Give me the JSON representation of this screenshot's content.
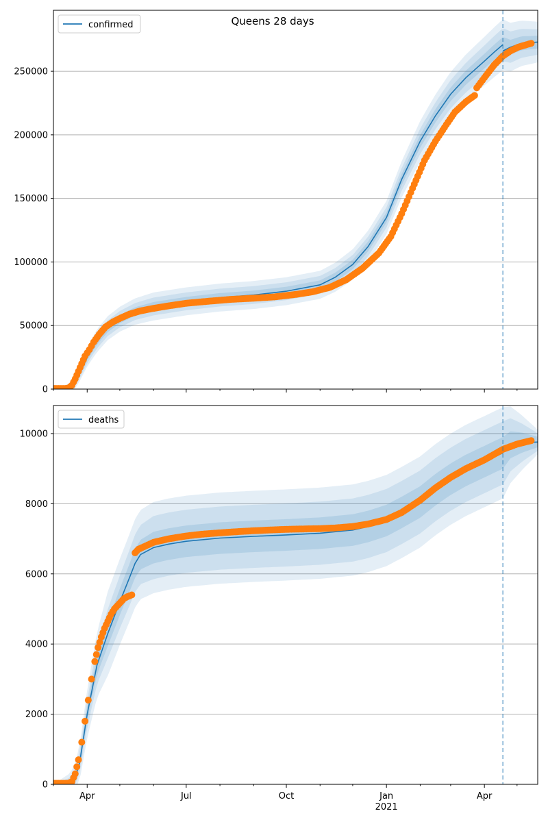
{
  "colors": {
    "model_line": "#1f77b4",
    "band": "#1f77b4",
    "observed_points": "#ff7f0e",
    "grid": "#b0b0b0",
    "forecast_marker": "#1f77b4"
  },
  "chart_data": [
    {
      "type": "line",
      "title": "Queens 28 days",
      "legend": {
        "label": "confirmed",
        "placement": "top-left"
      },
      "ylim": [
        0,
        298000
      ],
      "xlim": [
        "2020-03-01",
        "2021-05-20"
      ],
      "yticks": [
        {
          "value": 0,
          "label": "0"
        },
        {
          "value": 50000,
          "label": "50000"
        },
        {
          "value": 100000,
          "label": "100000"
        },
        {
          "value": 150000,
          "label": "150000"
        },
        {
          "value": 200000,
          "label": "200000"
        },
        {
          "value": 250000,
          "label": "250000"
        }
      ],
      "grid": "horizontal",
      "forecast_date": "2021-04-18",
      "fit_end_date": "2021-04-18",
      "model": {
        "name": "confirmed",
        "x": [
          "2020-03-01",
          "2020-03-10",
          "2020-03-15",
          "2020-03-20",
          "2020-03-25",
          "2020-04-01",
          "2020-04-10",
          "2020-04-20",
          "2020-05-01",
          "2020-05-15",
          "2020-06-01",
          "2020-07-01",
          "2020-08-01",
          "2020-09-01",
          "2020-10-01",
          "2020-11-01",
          "2020-11-15",
          "2020-12-01",
          "2020-12-15",
          "2021-01-01",
          "2021-01-15",
          "2021-02-01",
          "2021-02-15",
          "2021-03-01",
          "2021-03-15",
          "2021-04-01",
          "2021-04-10",
          "2021-04-18"
        ],
        "y": [
          0,
          0,
          500,
          4000,
          12000,
          25000,
          38000,
          48000,
          55000,
          61000,
          65000,
          69000,
          72000,
          74000,
          77000,
          82000,
          88000,
          98000,
          112000,
          135000,
          165000,
          195000,
          215000,
          232000,
          245000,
          258000,
          265000,
          271000
        ]
      },
      "model_tail": {
        "x": [
          "2021-04-18",
          "2021-04-25",
          "2021-05-05",
          "2021-05-20"
        ],
        "y": [
          266000,
          269000,
          272000,
          273000
        ]
      },
      "band_widths": [
        {
          "x": "2020-03-01",
          "inner": 0,
          "middle": 0,
          "outer": 0
        },
        {
          "x": "2020-03-20",
          "inner": 1500,
          "middle": 3000,
          "outer": 5000
        },
        {
          "x": "2020-04-10",
          "inner": 3000,
          "middle": 6000,
          "outer": 9000
        },
        {
          "x": "2020-06-01",
          "inner": 3500,
          "middle": 7000,
          "outer": 11000
        },
        {
          "x": "2020-11-01",
          "inner": 3500,
          "middle": 7000,
          "outer": 11000
        },
        {
          "x": "2021-01-01",
          "inner": 4000,
          "middle": 8000,
          "outer": 13000
        },
        {
          "x": "2021-02-01",
          "inner": 5000,
          "middle": 10000,
          "outer": 16000
        },
        {
          "x": "2021-04-18",
          "inner": 6000,
          "middle": 13000,
          "outer": 20000
        },
        {
          "x": "2021-05-20",
          "inner": 5000,
          "middle": 10000,
          "outer": 16000
        }
      ],
      "observed": {
        "x": [
          "2020-03-01",
          "2020-03-12",
          "2020-03-15",
          "2020-03-18",
          "2020-03-21",
          "2020-03-24",
          "2020-03-27",
          "2020-03-30",
          "2020-04-03",
          "2020-04-07",
          "2020-04-12",
          "2020-04-18",
          "2020-04-25",
          "2020-05-02",
          "2020-05-10",
          "2020-05-20",
          "2020-06-01",
          "2020-06-15",
          "2020-07-01",
          "2020-07-20",
          "2020-08-10",
          "2020-09-01",
          "2020-09-20",
          "2020-10-10",
          "2020-10-25",
          "2020-11-10",
          "2020-11-25",
          "2020-12-10",
          "2020-12-25",
          "2021-01-05",
          "2021-01-15",
          "2021-01-25",
          "2021-02-05",
          "2021-02-15",
          "2021-02-25",
          "2021-03-05",
          "2021-03-15",
          "2021-03-23",
          "2021-03-25",
          "2021-04-01",
          "2021-04-10",
          "2021-04-18",
          "2021-04-25",
          "2021-05-02",
          "2021-05-10",
          "2021-05-14"
        ],
        "y": [
          500,
          500,
          900,
          3000,
          8000,
          14000,
          20000,
          26000,
          31000,
          37000,
          43000,
          49000,
          53000,
          56000,
          59000,
          61500,
          63500,
          65500,
          67500,
          69000,
          70500,
          71500,
          72500,
          74500,
          76500,
          80000,
          86000,
          95000,
          107000,
          120000,
          138000,
          158000,
          180000,
          195000,
          208000,
          218000,
          226000,
          231000,
          237000,
          245000,
          255000,
          262000,
          266000,
          269000,
          271000,
          272000
        ]
      }
    },
    {
      "type": "line",
      "legend": {
        "label": "deaths",
        "placement": "top-left"
      },
      "ylim": [
        0,
        10800
      ],
      "xlim": [
        "2020-03-01",
        "2021-05-20"
      ],
      "yticks": [
        {
          "value": 0,
          "label": "0"
        },
        {
          "value": 2000,
          "label": "2000"
        },
        {
          "value": 4000,
          "label": "4000"
        },
        {
          "value": 6000,
          "label": "6000"
        },
        {
          "value": 8000,
          "label": "8000"
        },
        {
          "value": 10000,
          "label": "10000"
        }
      ],
      "xticks": [
        {
          "date": "2020-04-01",
          "label": "Apr"
        },
        {
          "date": "2020-07-01",
          "label": "Jul"
        },
        {
          "date": "2020-10-01",
          "label": "Oct"
        },
        {
          "date": "2021-01-01",
          "label": "Jan",
          "sublabel": "2021"
        },
        {
          "date": "2021-04-01",
          "label": "Apr"
        }
      ],
      "minor_ticks": [
        "2020-03-01",
        "2020-05-01",
        "2020-06-01",
        "2020-08-01",
        "2020-09-01",
        "2020-11-01",
        "2020-12-01",
        "2021-02-01",
        "2021-03-01",
        "2021-05-01"
      ],
      "grid": "horizontal",
      "forecast_date": "2021-04-18",
      "model": {
        "name": "deaths",
        "x": [
          "2020-03-01",
          "2020-03-15",
          "2020-03-20",
          "2020-03-25",
          "2020-04-01",
          "2020-04-10",
          "2020-04-20",
          "2020-05-01",
          "2020-05-10",
          "2020-05-15",
          "2020-05-20",
          "2020-06-01",
          "2020-06-15",
          "2020-07-01",
          "2020-08-01",
          "2020-09-01",
          "2020-10-01",
          "2020-11-01",
          "2020-12-01",
          "2020-12-15",
          "2021-01-01",
          "2021-01-15",
          "2021-02-01",
          "2021-02-15",
          "2021-03-01",
          "2021-03-15",
          "2021-04-01",
          "2021-04-18"
        ],
        "y": [
          0,
          0,
          100,
          600,
          2000,
          3400,
          4300,
          5200,
          5900,
          6300,
          6550,
          6750,
          6850,
          6930,
          7020,
          7070,
          7110,
          7160,
          7250,
          7350,
          7520,
          7750,
          8050,
          8400,
          8700,
          8950,
          9200,
          9450
        ]
      },
      "model_tail": {
        "x": [
          "2021-04-18",
          "2021-04-25",
          "2021-05-05",
          "2021-05-20"
        ],
        "y": [
          9600,
          9680,
          9740,
          9760
        ]
      },
      "band_widths": [
        {
          "x": "2020-03-01",
          "inner": 0,
          "middle": 0,
          "outer": 0
        },
        {
          "x": "2020-03-25",
          "inner": 150,
          "middle": 300,
          "outer": 500
        },
        {
          "x": "2020-04-20",
          "inner": 350,
          "middle": 700,
          "outer": 1200
        },
        {
          "x": "2020-06-01",
          "inner": 450,
          "middle": 900,
          "outer": 1300
        },
        {
          "x": "2020-11-01",
          "inner": 450,
          "middle": 900,
          "outer": 1300
        },
        {
          "x": "2021-01-01",
          "inner": 450,
          "middle": 900,
          "outer": 1300
        },
        {
          "x": "2021-02-15",
          "inner": 450,
          "middle": 900,
          "outer": 1300
        },
        {
          "x": "2021-04-18",
          "inner": 450,
          "middle": 900,
          "outer": 1300
        },
        {
          "x": "2021-05-20",
          "inner": 150,
          "middle": 250,
          "outer": 350
        }
      ],
      "observed": {
        "x": [
          "2020-03-01",
          "2020-03-15",
          "2020-03-18",
          "2020-03-21",
          "2020-03-24",
          "2020-03-27",
          "2020-03-30",
          "2020-04-02",
          "2020-04-05",
          "2020-04-08",
          "2020-04-11",
          "2020-04-14",
          "2020-04-17",
          "2020-04-20",
          "2020-04-23",
          "2020-04-26",
          "2020-04-29",
          "2020-05-02",
          "2020-05-05",
          "2020-05-08",
          "2020-05-12",
          "2020-05-15",
          "2020-05-18",
          "2020-05-25",
          "2020-06-01",
          "2020-06-15",
          "2020-07-01",
          "2020-07-15",
          "2020-08-01",
          "2020-08-15",
          "2020-09-01",
          "2020-09-15",
          "2020-10-01",
          "2020-10-15",
          "2020-11-01",
          "2020-11-15",
          "2020-12-01",
          "2020-12-15",
          "2021-01-01",
          "2021-01-15",
          "2021-02-01",
          "2021-02-15",
          "2021-03-01",
          "2021-03-15",
          "2021-04-01",
          "2021-04-18",
          "2021-05-01",
          "2021-05-14"
        ],
        "y": [
          30,
          30,
          80,
          300,
          700,
          1200,
          1800,
          2400,
          3000,
          3500,
          3900,
          4200,
          4450,
          4650,
          4850,
          5000,
          5100,
          5200,
          5300,
          5350,
          5400,
          6600,
          6700,
          6800,
          6900,
          7000,
          7080,
          7130,
          7170,
          7200,
          7230,
          7250,
          7270,
          7280,
          7290,
          7310,
          7350,
          7420,
          7550,
          7750,
          8100,
          8450,
          8750,
          9000,
          9250,
          9550,
          9700,
          9800
        ]
      }
    }
  ]
}
